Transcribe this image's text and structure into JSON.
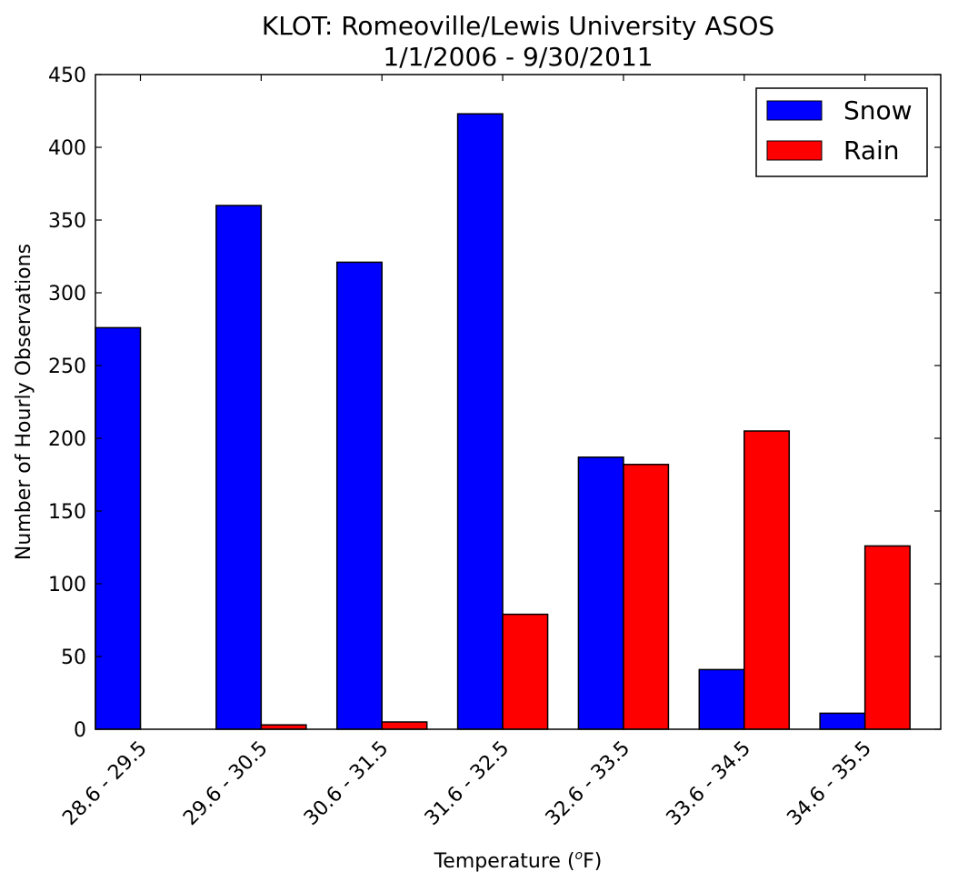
{
  "chart_data": {
    "type": "bar",
    "title": "KLOT: Romeoville/Lewis University ASOS",
    "subtitle": "1/1/2006 - 9/30/2011",
    "xlabel_main": "Temperature (",
    "xlabel_sup": "o",
    "xlabel_end": "F)",
    "ylabel": "Number of Hourly Observations",
    "categories": [
      "28.6 - 29.5",
      "29.6 - 30.5",
      "30.6 - 31.5",
      "31.6 - 32.5",
      "32.6 - 33.5",
      "33.6 - 34.5",
      "34.6 - 35.5"
    ],
    "series": [
      {
        "name": "Snow",
        "color": "#0000ff",
        "values": [
          276,
          360,
          321,
          423,
          187,
          41,
          11
        ]
      },
      {
        "name": "Rain",
        "color": "#ff0000",
        "values": [
          0,
          3,
          5,
          79,
          182,
          205,
          126
        ]
      }
    ],
    "ylim": [
      0,
      450
    ],
    "yticks": [
      0,
      50,
      100,
      150,
      200,
      250,
      300,
      350,
      400,
      450
    ],
    "grid": false,
    "legend_position": "top-right"
  }
}
